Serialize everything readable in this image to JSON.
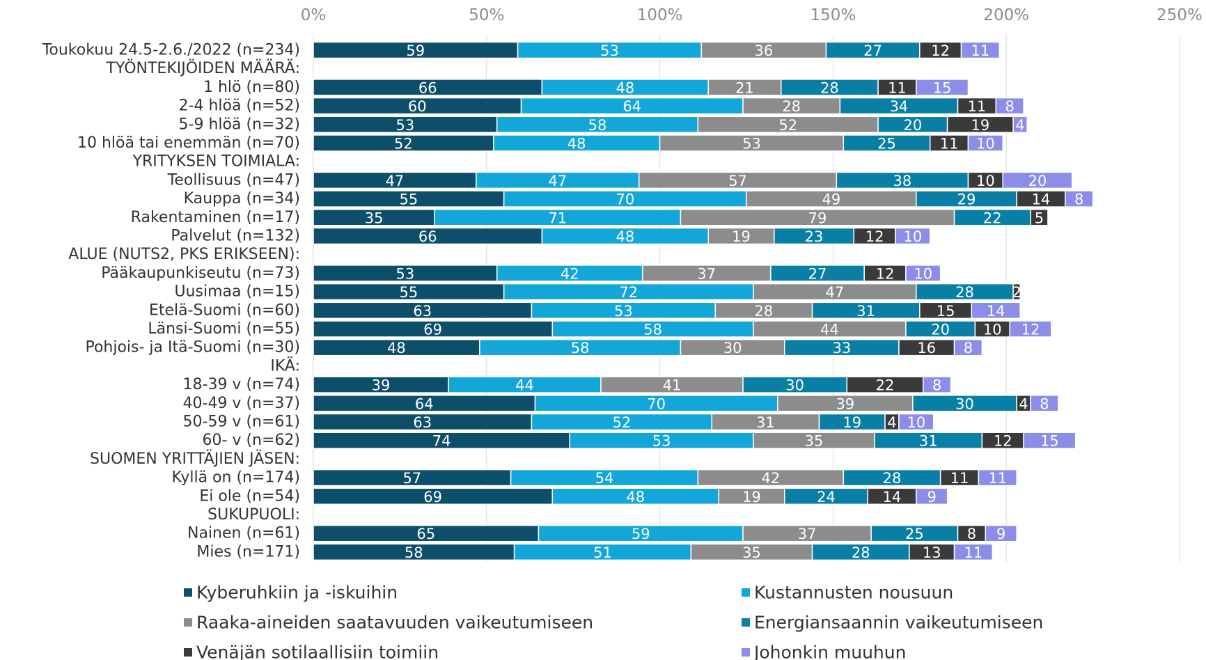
{
  "chart_data": {
    "type": "stacked-bar-horizontal",
    "categories": [
      "Toukokuu 24.5-2.6./2022 (n=234)",
      "TYÖNTEKIJÖIDEN MÄÄRÄ:",
      "1 hlö (n=80)",
      "2-4 hlöä (n=52)",
      "5-9 hlöä (n=32)",
      "10 hlöä tai enemmän (n=70)",
      "YRITYKSEN TOIMIALA:",
      "Teollisuus (n=47)",
      "Kauppa (n=34)",
      "Rakentaminen (n=17)",
      "Palvelut (n=132)",
      "ALUE (NUTS2, PKS ERIKSEEN):",
      "Pääkaupunkiseutu (n=73)",
      "Uusimaa (n=15)",
      "Etelä-Suomi (n=60)",
      "Länsi-Suomi (n=55)",
      "Pohjois- ja Itä-Suomi (n=30)",
      "IKÄ:",
      "18-39 v (n=74)",
      "40-49 v (n=37)",
      "50-59 v (n=61)",
      "60- v (n=62)",
      "SUOMEN YRITTÄJIEN JÄSEN:",
      "Kyllä on (n=174)",
      "Ei ole (n=54)",
      "SUKUPUOLI:",
      "Nainen (n=61)",
      "Mies (n=171)"
    ],
    "series": [
      {
        "name": "Kyberuhkiin ja -iskuihin",
        "color": "#0d4f6a",
        "values": [
          59,
          null,
          66,
          60,
          53,
          52,
          null,
          47,
          55,
          35,
          66,
          null,
          53,
          55,
          63,
          69,
          48,
          null,
          39,
          64,
          63,
          74,
          null,
          57,
          69,
          null,
          65,
          58
        ]
      },
      {
        "name": "Kustannusten nousuun",
        "color": "#12a6d9",
        "values": [
          53,
          null,
          48,
          64,
          58,
          48,
          null,
          47,
          70,
          71,
          48,
          null,
          42,
          72,
          53,
          58,
          58,
          null,
          44,
          70,
          52,
          53,
          null,
          54,
          48,
          null,
          59,
          51
        ]
      },
      {
        "name": "Raaka-aineiden saatavuuden vaikeutumiseen",
        "color": "#8c8c8c",
        "values": [
          36,
          null,
          21,
          28,
          52,
          53,
          null,
          57,
          49,
          79,
          19,
          null,
          37,
          47,
          28,
          44,
          30,
          null,
          41,
          39,
          31,
          35,
          null,
          42,
          19,
          null,
          37,
          35
        ]
      },
      {
        "name": "Energiansaannin vaikeutumiseen",
        "color": "#0a7fa6",
        "values": [
          27,
          null,
          28,
          34,
          20,
          25,
          null,
          38,
          29,
          22,
          23,
          null,
          27,
          28,
          31,
          20,
          33,
          null,
          30,
          30,
          19,
          31,
          null,
          28,
          24,
          null,
          25,
          28
        ]
      },
      {
        "name": "Venäjän sotilaallisiin toimiin",
        "color": "#3a3a3a",
        "values": [
          12,
          null,
          11,
          11,
          19,
          11,
          null,
          10,
          14,
          5,
          12,
          null,
          12,
          2,
          15,
          10,
          16,
          null,
          22,
          4,
          4,
          12,
          null,
          11,
          14,
          null,
          8,
          13
        ]
      },
      {
        "name": "Johonkin muuhun",
        "color": "#8b8de8",
        "values": [
          11,
          null,
          15,
          8,
          4,
          10,
          null,
          20,
          8,
          null,
          10,
          null,
          10,
          null,
          14,
          12,
          8,
          null,
          8,
          8,
          10,
          15,
          null,
          11,
          9,
          null,
          9,
          11
        ]
      }
    ],
    "xlim": [
      0,
      250
    ],
    "xticks": [
      {
        "value": 0,
        "label": "0%"
      },
      {
        "value": 50,
        "label": "50%"
      },
      {
        "value": 100,
        "label": "100%"
      },
      {
        "value": 150,
        "label": "150%"
      },
      {
        "value": 200,
        "label": "200%"
      },
      {
        "value": 250,
        "label": "250%"
      }
    ],
    "grid": true
  }
}
